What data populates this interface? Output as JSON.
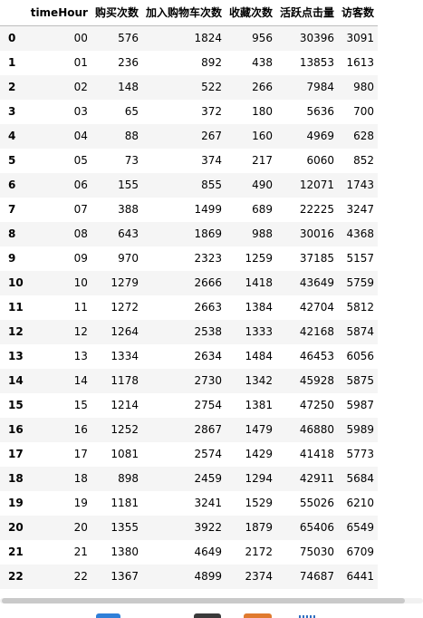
{
  "table": {
    "columns": [
      "timeHour",
      "购买次数",
      "加入购物车次数",
      "收藏次数",
      "活跃点击量",
      "访客数"
    ],
    "rows": [
      {
        "index": "0",
        "values": [
          "00",
          "576",
          "1824",
          "956",
          "30396",
          "3091"
        ]
      },
      {
        "index": "1",
        "values": [
          "01",
          "236",
          "892",
          "438",
          "13853",
          "1613"
        ]
      },
      {
        "index": "2",
        "values": [
          "02",
          "148",
          "522",
          "266",
          "7984",
          "980"
        ]
      },
      {
        "index": "3",
        "values": [
          "03",
          "65",
          "372",
          "180",
          "5636",
          "700"
        ]
      },
      {
        "index": "4",
        "values": [
          "04",
          "88",
          "267",
          "160",
          "4969",
          "628"
        ]
      },
      {
        "index": "5",
        "values": [
          "05",
          "73",
          "374",
          "217",
          "6060",
          "852"
        ]
      },
      {
        "index": "6",
        "values": [
          "06",
          "155",
          "855",
          "490",
          "12071",
          "1743"
        ]
      },
      {
        "index": "7",
        "values": [
          "07",
          "388",
          "1499",
          "689",
          "22225",
          "3247"
        ]
      },
      {
        "index": "8",
        "values": [
          "08",
          "643",
          "1869",
          "988",
          "30016",
          "4368"
        ]
      },
      {
        "index": "9",
        "values": [
          "09",
          "970",
          "2323",
          "1259",
          "37185",
          "5157"
        ]
      },
      {
        "index": "10",
        "values": [
          "10",
          "1279",
          "2666",
          "1418",
          "43649",
          "5759"
        ]
      },
      {
        "index": "11",
        "values": [
          "11",
          "1272",
          "2663",
          "1384",
          "42704",
          "5812"
        ]
      },
      {
        "index": "12",
        "values": [
          "12",
          "1264",
          "2538",
          "1333",
          "42168",
          "5874"
        ]
      },
      {
        "index": "13",
        "values": [
          "13",
          "1334",
          "2634",
          "1484",
          "46453",
          "6056"
        ]
      },
      {
        "index": "14",
        "values": [
          "14",
          "1178",
          "2730",
          "1342",
          "45928",
          "5875"
        ]
      },
      {
        "index": "15",
        "values": [
          "15",
          "1214",
          "2754",
          "1381",
          "47250",
          "5987"
        ]
      },
      {
        "index": "16",
        "values": [
          "16",
          "1252",
          "2867",
          "1479",
          "46880",
          "5989"
        ]
      },
      {
        "index": "17",
        "values": [
          "17",
          "1081",
          "2574",
          "1429",
          "41418",
          "5773"
        ]
      },
      {
        "index": "18",
        "values": [
          "18",
          "898",
          "2459",
          "1294",
          "42911",
          "5684"
        ]
      },
      {
        "index": "19",
        "values": [
          "19",
          "1181",
          "3241",
          "1529",
          "55026",
          "6210"
        ]
      },
      {
        "index": "20",
        "values": [
          "20",
          "1355",
          "3922",
          "1879",
          "65406",
          "6549"
        ]
      },
      {
        "index": "21",
        "values": [
          "21",
          "1380",
          "4649",
          "2172",
          "75030",
          "6709"
        ]
      },
      {
        "index": "22",
        "values": [
          "22",
          "1367",
          "4899",
          "2374",
          "74687",
          "6441"
        ]
      }
    ]
  }
}
